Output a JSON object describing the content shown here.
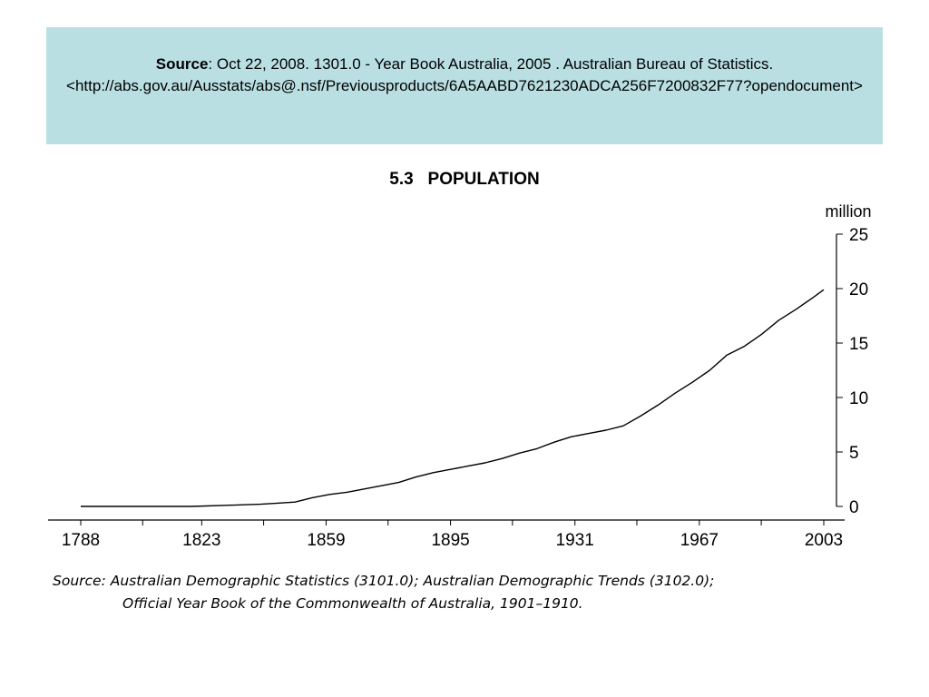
{
  "banner": {
    "source_label": "Source",
    "citation": ":  Oct 22, 2008. 1301.0 - Year Book Australia, 2005 .  Australian Bureau of Statistics.",
    "url": "<http://abs.gov.au/Ausstats/abs@.nsf/Previousproducts/6A5AABD7621230ADCA256F7200832F77?opendocument>"
  },
  "chart_data": {
    "type": "line",
    "title": "5.3   POPULATION",
    "xlabel": "",
    "ylabel": "million",
    "xlim": [
      1788,
      2003
    ],
    "ylim": [
      0,
      25
    ],
    "x_ticks": [
      "1788",
      "1823",
      "1859",
      "1895",
      "1931",
      "1967",
      "2003"
    ],
    "y_ticks": [
      "0",
      "5",
      "10",
      "15",
      "20",
      "25"
    ],
    "y_axis_position": "right",
    "grid": false,
    "series": [
      {
        "values": [
          [
            1788,
            0.0
          ],
          [
            1800,
            0.0
          ],
          [
            1820,
            0.0
          ],
          [
            1830,
            0.1
          ],
          [
            1840,
            0.2
          ],
          [
            1845,
            0.3
          ],
          [
            1850,
            0.4
          ],
          [
            1855,
            0.8
          ],
          [
            1860,
            1.1
          ],
          [
            1865,
            1.3
          ],
          [
            1870,
            1.6
          ],
          [
            1875,
            1.9
          ],
          [
            1880,
            2.2
          ],
          [
            1885,
            2.7
          ],
          [
            1890,
            3.1
          ],
          [
            1895,
            3.4
          ],
          [
            1900,
            3.7
          ],
          [
            1905,
            4.0
          ],
          [
            1910,
            4.4
          ],
          [
            1915,
            4.9
          ],
          [
            1920,
            5.3
          ],
          [
            1925,
            5.9
          ],
          [
            1930,
            6.4
          ],
          [
            1935,
            6.7
          ],
          [
            1940,
            7.0
          ],
          [
            1945,
            7.4
          ],
          [
            1950,
            8.3
          ],
          [
            1955,
            9.3
          ],
          [
            1960,
            10.4
          ],
          [
            1965,
            11.4
          ],
          [
            1970,
            12.5
          ],
          [
            1975,
            13.9
          ],
          [
            1980,
            14.7
          ],
          [
            1985,
            15.8
          ],
          [
            1990,
            17.1
          ],
          [
            1995,
            18.1
          ],
          [
            2000,
            19.2
          ],
          [
            2003,
            19.9
          ]
        ]
      }
    ]
  },
  "footnote": {
    "line1": "Source: Australian Demographic Statistics (3101.0); Australian Demographic Trends (3102.0);",
    "line2": "Official Year Book of the Commonwealth of Australia, 1901–1910."
  },
  "colors": {
    "banner_bg": "#b9dfe3",
    "line": "#000000"
  }
}
